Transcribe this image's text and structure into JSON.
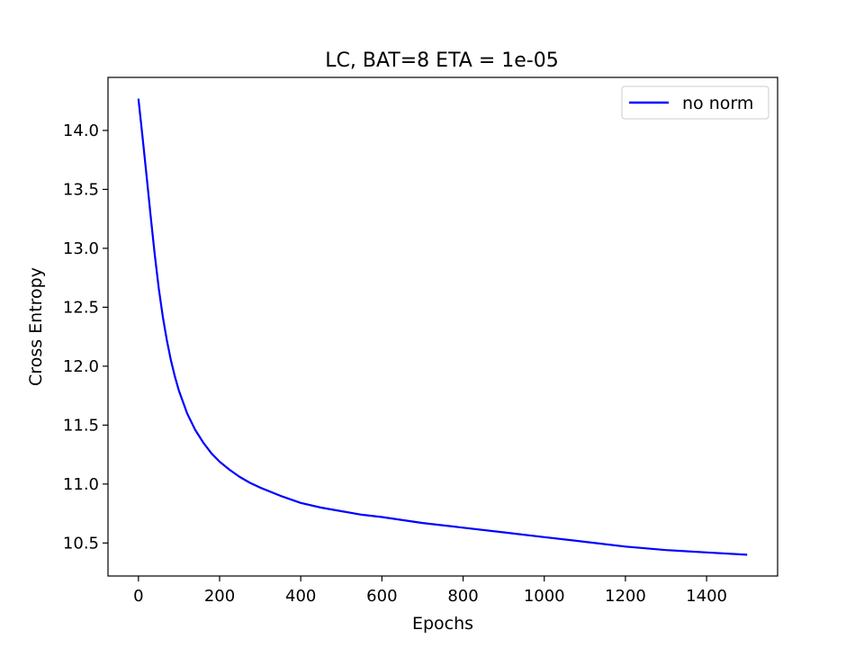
{
  "chart_data": {
    "type": "line",
    "title": "LC, BAT=8 ETA = 1e-05",
    "xlabel": "Epochs",
    "ylabel": "Cross Entropy",
    "xlim": [
      -75,
      1575
    ],
    "ylim": [
      10.22,
      14.45
    ],
    "xticks": [
      0,
      200,
      400,
      600,
      800,
      1000,
      1200,
      1400
    ],
    "yticks": [
      10.5,
      11.0,
      11.5,
      12.0,
      12.5,
      13.0,
      13.5,
      14.0
    ],
    "ytick_labels": [
      "10.5",
      "11.0",
      "11.5",
      "12.0",
      "12.5",
      "13.0",
      "13.5",
      "14.0"
    ],
    "grid": false,
    "legend_position": "top-right",
    "series": [
      {
        "name": "no norm",
        "color": "#0000ff",
        "x": [
          0,
          10,
          20,
          30,
          40,
          50,
          60,
          70,
          80,
          90,
          100,
          120,
          140,
          160,
          180,
          200,
          225,
          250,
          275,
          300,
          350,
          400,
          450,
          500,
          550,
          600,
          700,
          800,
          900,
          1000,
          1100,
          1200,
          1300,
          1400,
          1500
        ],
        "y": [
          14.27,
          13.95,
          13.62,
          13.28,
          12.95,
          12.66,
          12.42,
          12.22,
          12.05,
          11.91,
          11.79,
          11.6,
          11.46,
          11.35,
          11.26,
          11.19,
          11.12,
          11.06,
          11.01,
          10.97,
          10.9,
          10.84,
          10.8,
          10.77,
          10.74,
          10.72,
          10.67,
          10.63,
          10.59,
          10.55,
          10.51,
          10.47,
          10.44,
          10.42,
          10.4
        ]
      }
    ]
  }
}
